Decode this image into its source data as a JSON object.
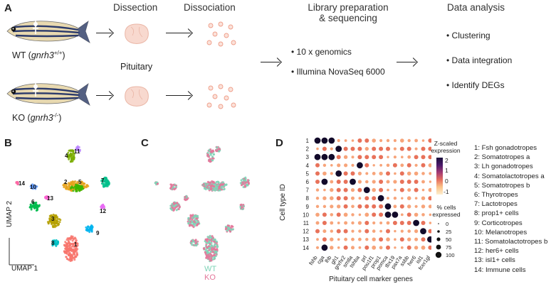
{
  "panel_a": {
    "letter": "A",
    "wt_label": "WT (",
    "wt_gene": "gnrh3",
    "wt_sup": "+/+",
    "wt_close": ")",
    "ko_label": "KO (",
    "ko_gene": "gnrh3",
    "ko_sup": "-/-",
    "ko_close": ")",
    "dissection": "Dissection",
    "dissociation": "Dissociation",
    "pituitary": "Pituitary",
    "library_line1": "Library preparation",
    "library_line2": "& sequencing",
    "library_items": [
      "10 x genomics",
      "Illumina NovaSeq 6000"
    ],
    "analysis_title": "Data analysis",
    "analysis_items": [
      "Clustering",
      "Data integration",
      "Identify DEGs"
    ]
  },
  "panel_b": {
    "letter": "B",
    "umap2": "UMAP 2",
    "umap1": "UMAP 1",
    "cluster_labels": [
      "1",
      "2",
      "3",
      "4",
      "5",
      "6",
      "7",
      "8",
      "9",
      "10",
      "11",
      "12",
      "13",
      "14"
    ],
    "cluster_colors": [
      "#f8766d",
      "#e6a21a",
      "#b5a000",
      "#7aad00",
      "#39b600",
      "#00bb4e",
      "#00c08b",
      "#00bfc4",
      "#00b4ef",
      "#619cff",
      "#b983ff",
      "#e76bf3",
      "#fd61d1",
      "#ff67a4"
    ]
  },
  "panel_c": {
    "letter": "C",
    "wt": "WT",
    "ko": "KO",
    "wt_color": "#7fd4b7",
    "ko_color": "#e3779a"
  },
  "panel_d": {
    "letter": "D",
    "ylabel": "Cell type ID",
    "xlabel": "Pituitary cell marker genes",
    "zscore_title": [
      "Z-scaled",
      "expression"
    ],
    "zscore_ticks": [
      "2",
      "1",
      "0",
      "-1"
    ],
    "pct_title": [
      "% cells",
      "expressed"
    ],
    "pct_ticks": [
      "0",
      "25",
      "50",
      "75",
      "100"
    ],
    "genes": [
      "fshb",
      "cga",
      "lhb",
      "gh1",
      "gnrhr2",
      "smtla",
      "tshba",
      "prl",
      "pou1f1",
      "prop1",
      "pomca",
      "tbx19",
      "pax7a",
      "ssbb",
      "her6",
      "isl1",
      "fcer1gl"
    ],
    "row_ids": [
      "1",
      "2",
      "3",
      "4",
      "5",
      "6",
      "7",
      "8",
      "9",
      "10",
      "11",
      "12",
      "13",
      "14"
    ],
    "cell_types": [
      "1: Fsh gonadotropes",
      "2: Somatotropes a",
      "3: Lh gonadotropes",
      "4: Somatolactotropes a",
      "5: Somatotropes b",
      "6: Thyrotropes",
      "7: Lactotropes",
      "8: prop1+ cells",
      "9: Corticotropes",
      "10: Melanotropes",
      "11: Somatolactotropes b",
      "12: her6+ cells",
      "13: isl1+ cells",
      "14: Immune cells"
    ]
  }
}
